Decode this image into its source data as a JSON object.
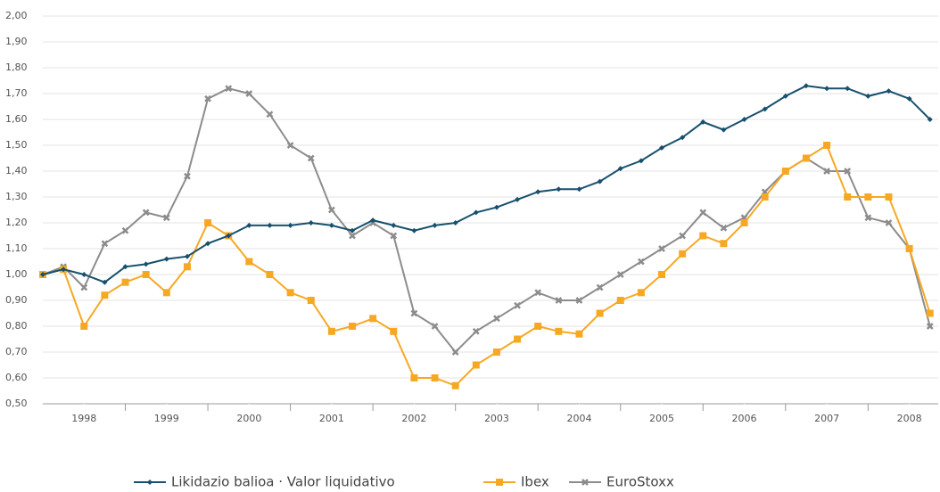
{
  "chart_data": {
    "type": "line",
    "x": [
      1998.0,
      1998.25,
      1998.5,
      1998.75,
      1999.0,
      1999.25,
      1999.5,
      1999.75,
      2000.0,
      2000.25,
      2000.5,
      2000.75,
      2001.0,
      2001.25,
      2001.5,
      2001.75,
      2002.0,
      2002.25,
      2002.5,
      2002.75,
      2003.0,
      2003.25,
      2003.5,
      2003.75,
      2004.0,
      2004.25,
      2004.5,
      2004.75,
      2005.0,
      2005.25,
      2005.5,
      2005.75,
      2006.0,
      2006.25,
      2006.5,
      2006.75,
      2007.0,
      2007.25,
      2007.5,
      2007.75,
      2008.0,
      2008.25,
      2008.5,
      2008.75
    ],
    "series": [
      {
        "name": "Likidazio balioa · Valor liquidativo",
        "color": "#17506e",
        "marker": "diamond",
        "values": [
          1.0,
          1.02,
          1.0,
          0.97,
          1.03,
          1.04,
          1.06,
          1.07,
          1.12,
          1.15,
          1.19,
          1.19,
          1.19,
          1.2,
          1.19,
          1.17,
          1.21,
          1.19,
          1.17,
          1.19,
          1.2,
          1.24,
          1.26,
          1.29,
          1.32,
          1.33,
          1.33,
          1.36,
          1.41,
          1.44,
          1.49,
          1.53,
          1.59,
          1.56,
          1.6,
          1.64,
          1.69,
          1.73,
          1.72,
          1.72,
          1.69,
          1.71,
          1.68,
          1.6
        ]
      },
      {
        "name": "Ibex",
        "color": "#f7a823",
        "marker": "square",
        "values": [
          1.0,
          1.02,
          0.8,
          0.92,
          0.97,
          1.0,
          0.93,
          1.03,
          1.2,
          1.15,
          1.05,
          1.0,
          0.93,
          0.9,
          0.78,
          0.8,
          0.83,
          0.78,
          0.6,
          0.6,
          0.57,
          0.65,
          0.7,
          0.75,
          0.8,
          0.78,
          0.77,
          0.85,
          0.9,
          0.93,
          1.0,
          1.08,
          1.15,
          1.12,
          1.2,
          1.3,
          1.4,
          1.45,
          1.5,
          1.3,
          1.3,
          1.3,
          1.1,
          0.85
        ]
      },
      {
        "name": "EuroStoxx",
        "color": "#8c8c8c",
        "marker": "x",
        "values": [
          1.0,
          1.03,
          0.95,
          1.12,
          1.17,
          1.24,
          1.22,
          1.38,
          1.68,
          1.72,
          1.7,
          1.62,
          1.5,
          1.45,
          1.25,
          1.15,
          1.2,
          1.15,
          0.85,
          0.8,
          0.7,
          0.78,
          0.83,
          0.88,
          0.93,
          0.9,
          0.9,
          0.95,
          1.0,
          1.05,
          1.1,
          1.15,
          1.24,
          1.18,
          1.22,
          1.32,
          1.4,
          1.45,
          1.4,
          1.4,
          1.22,
          1.2,
          1.1,
          0.8
        ]
      }
    ],
    "xlim": [
      1998,
      2008.85
    ],
    "xticks": [
      {
        "value": 1998.5,
        "label": "1998"
      },
      {
        "value": 1999.5,
        "label": "1999"
      },
      {
        "value": 2000.5,
        "label": "2000"
      },
      {
        "value": 2001.5,
        "label": "2001"
      },
      {
        "value": 2002.5,
        "label": "2002"
      },
      {
        "value": 2003.5,
        "label": "2003"
      },
      {
        "value": 2004.5,
        "label": "2004"
      },
      {
        "value": 2005.5,
        "label": "2005"
      },
      {
        "value": 2006.5,
        "label": "2006"
      },
      {
        "value": 2007.5,
        "label": "2007"
      },
      {
        "value": 2008.5,
        "label": "2008"
      }
    ],
    "ylim": [
      0.5,
      2.0
    ],
    "yticks": [
      {
        "value": 0.5,
        "label": "0,50"
      },
      {
        "value": 0.6,
        "label": "0,60"
      },
      {
        "value": 0.7,
        "label": "0,70"
      },
      {
        "value": 0.8,
        "label": "0,80"
      },
      {
        "value": 0.9,
        "label": "0,90"
      },
      {
        "value": 1.0,
        "label": "1,00"
      },
      {
        "value": 1.1,
        "label": "1,10"
      },
      {
        "value": 1.2,
        "label": "1,20"
      },
      {
        "value": 1.3,
        "label": "1,30"
      },
      {
        "value": 1.4,
        "label": "1,40"
      },
      {
        "value": 1.5,
        "label": "1,50"
      },
      {
        "value": 1.6,
        "label": "1,60"
      },
      {
        "value": 1.7,
        "label": "1,70"
      },
      {
        "value": 1.8,
        "label": "1,80"
      },
      {
        "value": 1.9,
        "label": "1,90"
      },
      {
        "value": 2.0,
        "label": "2,00"
      }
    ],
    "grid": true
  }
}
